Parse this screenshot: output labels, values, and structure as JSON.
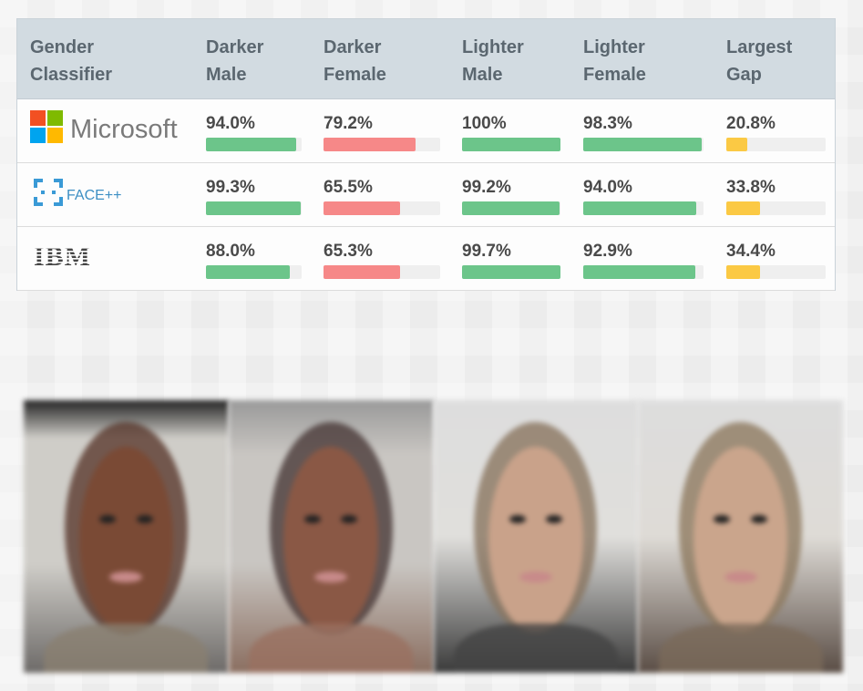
{
  "table": {
    "headers": [
      "Gender\nClassifier",
      "Darker\nMale",
      "Darker\nFemale",
      "Lighter\nMale",
      "Lighter\nFemale",
      "Largest\nGap"
    ],
    "rows": [
      {
        "classifier": "Microsoft",
        "logo": "microsoft-logo",
        "values": [
          "94.0%",
          "79.2%",
          "100%",
          "98.3%",
          "20.8%"
        ],
        "fractions": [
          94.0,
          79.2,
          100,
          98.3,
          20.8
        ]
      },
      {
        "classifier": "FACE++",
        "logo": "faceplusplus-logo",
        "values": [
          "99.3%",
          "65.5%",
          "99.2%",
          "94.0%",
          "33.8%"
        ],
        "fractions": [
          99.3,
          65.5,
          99.2,
          94.0,
          33.8
        ]
      },
      {
        "classifier": "IBM",
        "logo": "ibm-logo",
        "values": [
          "88.0%",
          "65.3%",
          "99.7%",
          "92.9%",
          "34.4%"
        ],
        "fractions": [
          88.0,
          65.3,
          99.7,
          92.9,
          34.4
        ]
      }
    ]
  },
  "chart_data": {
    "type": "table",
    "columns": [
      "Darker Male",
      "Darker Female",
      "Lighter Male",
      "Lighter Female",
      "Largest Gap"
    ],
    "series": [
      {
        "name": "Microsoft",
        "values": [
          94.0,
          79.2,
          100,
          98.3,
          20.8
        ]
      },
      {
        "name": "FACE++",
        "values": [
          99.3,
          65.5,
          99.2,
          94.0,
          33.8
        ]
      },
      {
        "name": "IBM",
        "values": [
          88.0,
          65.3,
          99.7,
          92.9,
          34.4
        ]
      }
    ],
    "ylim": [
      0,
      100
    ]
  },
  "colors": {
    "good": "#6cc58a",
    "bad": "#f68888",
    "gap": "#fbc944",
    "track": "#efefef",
    "header_bg": "#d2dbe1"
  },
  "faces": [
    "darker-male-average-face",
    "darker-female-average-face",
    "lighter-male-average-face",
    "lighter-female-average-face"
  ]
}
